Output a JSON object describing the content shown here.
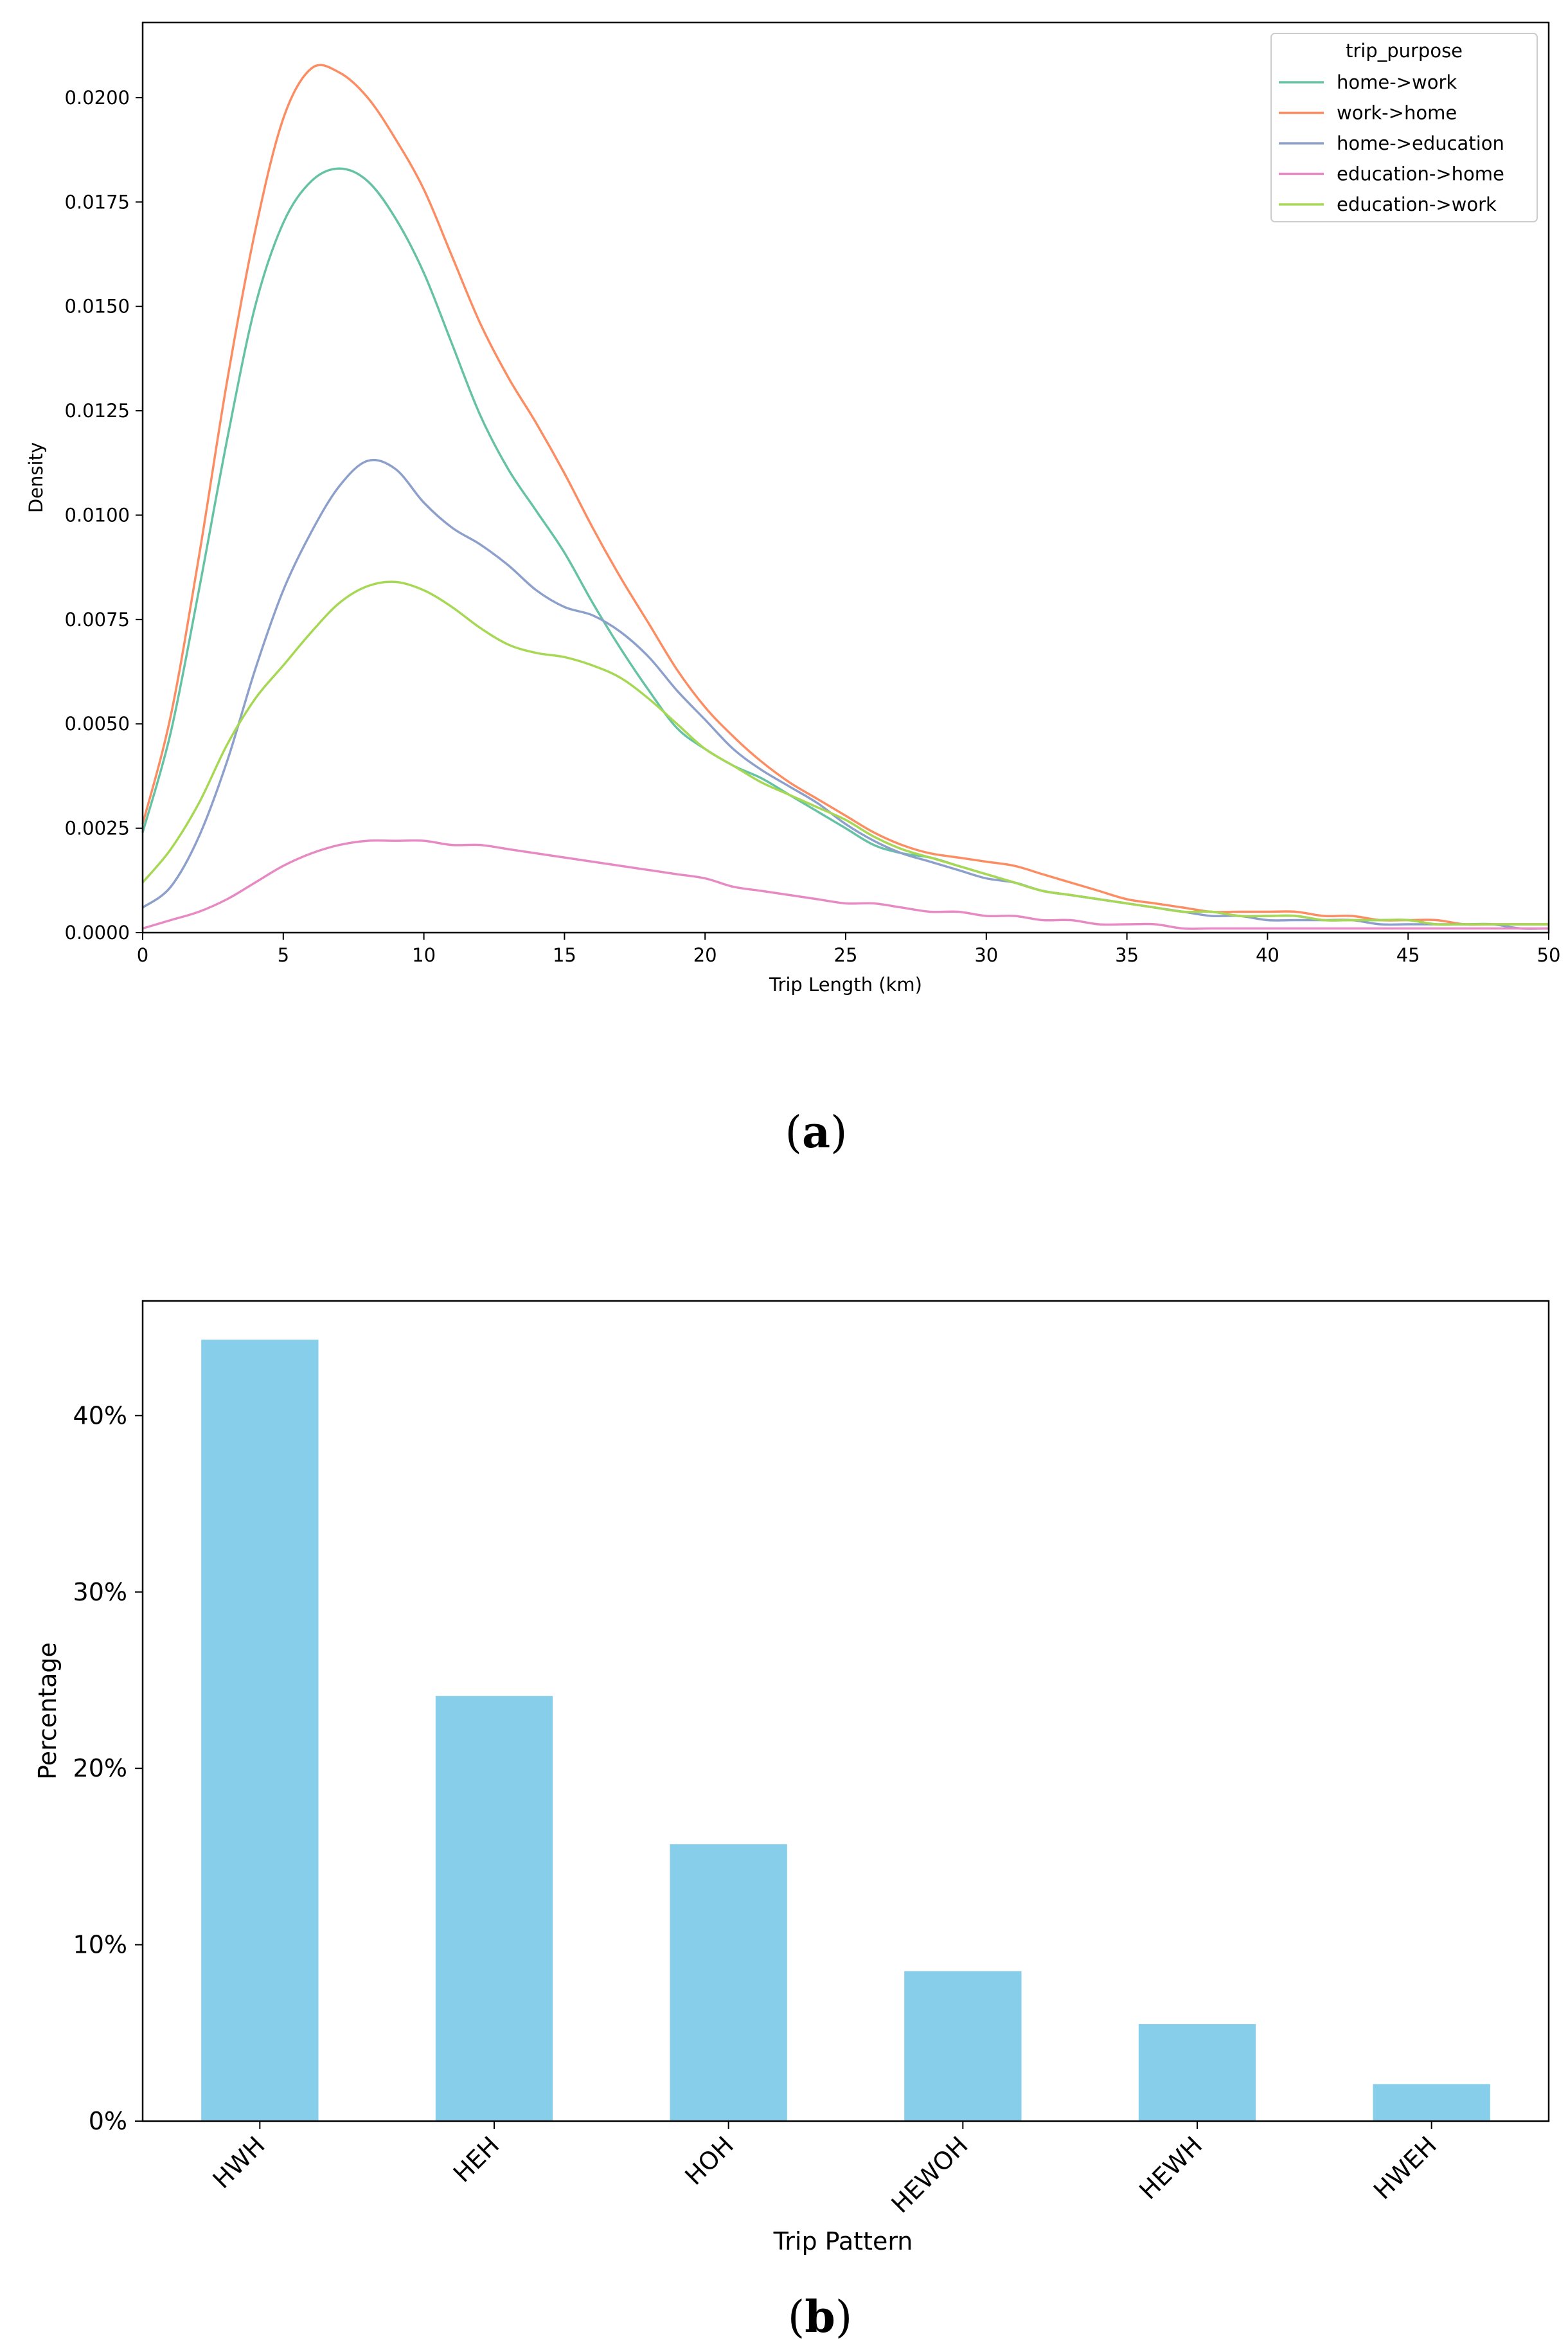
{
  "chart_data": [
    {
      "type": "line",
      "caption": "a",
      "xlabel": "Trip Length (km)",
      "ylabel": "Density",
      "xlim": [
        0,
        50
      ],
      "ylim": [
        0,
        0.0218
      ],
      "x_ticks": [
        "0",
        "5",
        "10",
        "15",
        "20",
        "25",
        "30",
        "35",
        "40",
        "45",
        "50"
      ],
      "y_ticks": [
        "0.0000",
        "0.0025",
        "0.0050",
        "0.0075",
        "0.0100",
        "0.0125",
        "0.0150",
        "0.0175",
        "0.0200"
      ],
      "grid": false,
      "legend_title": "trip_purpose",
      "legend_position": "top-right",
      "x": [
        0,
        1,
        2,
        3,
        4,
        5,
        6,
        7,
        8,
        9,
        10,
        11,
        12,
        13,
        14,
        15,
        16,
        17,
        18,
        19,
        20,
        21,
        22,
        23,
        24,
        25,
        26,
        27,
        28,
        29,
        30,
        31,
        32,
        33,
        34,
        35,
        36,
        37,
        38,
        39,
        40,
        41,
        42,
        43,
        44,
        45,
        46,
        47,
        48,
        49,
        50
      ],
      "series": [
        {
          "name": "home->work",
          "color": "#66c2a5",
          "values": [
            0.0024,
            0.0048,
            0.0082,
            0.0118,
            0.015,
            0.017,
            0.018,
            0.0183,
            0.018,
            0.0171,
            0.0158,
            0.0141,
            0.0124,
            0.0111,
            0.0101,
            0.0091,
            0.0079,
            0.0068,
            0.0058,
            0.0049,
            0.0044,
            0.004,
            0.0037,
            0.0033,
            0.0029,
            0.0025,
            0.0021,
            0.0019,
            0.0018,
            0.0016,
            0.0014,
            0.0012,
            0.001,
            0.0009,
            0.0008,
            0.0007,
            0.0006,
            0.0005,
            0.0005,
            0.0004,
            0.0004,
            0.0004,
            0.0003,
            0.0003,
            0.0003,
            0.0003,
            0.0002,
            0.0002,
            0.0002,
            0.0002,
            0.0002
          ]
        },
        {
          "name": "work->home",
          "color": "#fc8d62",
          "values": [
            0.0026,
            0.0052,
            0.009,
            0.0132,
            0.0168,
            0.0195,
            0.0207,
            0.0206,
            0.02,
            0.019,
            0.0178,
            0.0162,
            0.0146,
            0.0133,
            0.0122,
            0.011,
            0.0097,
            0.0085,
            0.0074,
            0.0063,
            0.0054,
            0.0047,
            0.0041,
            0.0036,
            0.0032,
            0.0028,
            0.0024,
            0.0021,
            0.0019,
            0.0018,
            0.0017,
            0.0016,
            0.0014,
            0.0012,
            0.001,
            0.0008,
            0.0007,
            0.0006,
            0.0005,
            0.0005,
            0.0005,
            0.0005,
            0.0004,
            0.0004,
            0.0003,
            0.0003,
            0.0003,
            0.0002,
            0.0002,
            0.0002,
            0.0002
          ]
        },
        {
          "name": "home->education",
          "color": "#8da0cb",
          "values": [
            0.0006,
            0.0011,
            0.0023,
            0.0041,
            0.0063,
            0.0082,
            0.0096,
            0.0107,
            0.0113,
            0.0111,
            0.0103,
            0.0097,
            0.0093,
            0.0088,
            0.0082,
            0.0078,
            0.0076,
            0.0072,
            0.0066,
            0.0058,
            0.0051,
            0.0044,
            0.0039,
            0.0035,
            0.0031,
            0.0026,
            0.0022,
            0.0019,
            0.0017,
            0.0015,
            0.0013,
            0.0012,
            0.001,
            0.0009,
            0.0008,
            0.0007,
            0.0006,
            0.0005,
            0.0004,
            0.0004,
            0.0003,
            0.0003,
            0.0003,
            0.0003,
            0.0002,
            0.0002,
            0.0002,
            0.0002,
            0.0002,
            0.0001,
            0.0001
          ]
        },
        {
          "name": "education->home",
          "color": "#e78ac3",
          "values": [
            0.0001,
            0.0003,
            0.0005,
            0.0008,
            0.0012,
            0.0016,
            0.0019,
            0.0021,
            0.0022,
            0.0022,
            0.0022,
            0.0021,
            0.0021,
            0.002,
            0.0019,
            0.0018,
            0.0017,
            0.0016,
            0.0015,
            0.0014,
            0.0013,
            0.0011,
            0.001,
            0.0009,
            0.0008,
            0.0007,
            0.0007,
            0.0006,
            0.0005,
            0.0005,
            0.0004,
            0.0004,
            0.0003,
            0.0003,
            0.0002,
            0.0002,
            0.0002,
            0.0001,
            0.0001,
            0.0001,
            0.0001,
            0.0001,
            0.0001,
            0.0001,
            0.0001,
            0.0001,
            0.0001,
            0.0001,
            0.0001,
            0.0001,
            0.0001
          ]
        },
        {
          "name": "education->work",
          "color": "#a6d854",
          "values": [
            0.0012,
            0.002,
            0.0031,
            0.0045,
            0.0056,
            0.0064,
            0.0072,
            0.0079,
            0.0083,
            0.0084,
            0.0082,
            0.0078,
            0.0073,
            0.0069,
            0.0067,
            0.0066,
            0.0064,
            0.0061,
            0.0056,
            0.005,
            0.0044,
            0.004,
            0.0036,
            0.0033,
            0.003,
            0.0027,
            0.0023,
            0.002,
            0.0018,
            0.0016,
            0.0014,
            0.0012,
            0.001,
            0.0009,
            0.0008,
            0.0007,
            0.0006,
            0.0005,
            0.0005,
            0.0004,
            0.0004,
            0.0004,
            0.0003,
            0.0003,
            0.0003,
            0.0003,
            0.0002,
            0.0002,
            0.0002,
            0.0002,
            0.0002
          ]
        }
      ]
    },
    {
      "type": "bar",
      "caption": "b",
      "xlabel": "Trip Pattern",
      "ylabel": "Percentage",
      "categories": [
        "HWH",
        "HEH",
        "HOH",
        "HEWOH",
        "HEWH",
        "HWEH"
      ],
      "values": [
        44.3,
        24.1,
        15.7,
        8.5,
        5.5,
        2.1
      ],
      "ylim": [
        0,
        46.5
      ],
      "y_ticks": [
        0,
        10,
        20,
        30,
        40
      ],
      "y_tick_labels": [
        "0%",
        "10%",
        "20%",
        "30%",
        "40%"
      ],
      "bar_color": "#87ceeb",
      "grid": false
    }
  ]
}
